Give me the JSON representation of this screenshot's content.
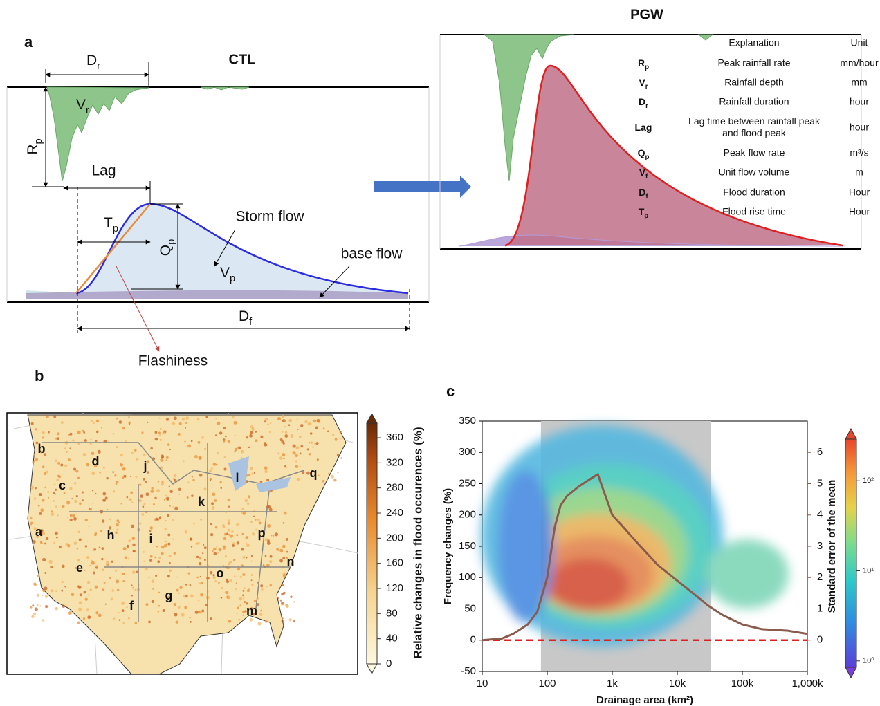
{
  "panel_a": {
    "label": "a",
    "title": "CTL",
    "symbols": {
      "Dr": {
        "base": "D",
        "sub": "r"
      },
      "Vr": {
        "base": "V",
        "sub": "r"
      },
      "Rp": {
        "base": "R",
        "sub": "p"
      },
      "Tp": {
        "base": "T",
        "sub": "p"
      },
      "Qp": {
        "base": "Q",
        "sub": "p"
      },
      "Vp": {
        "base": "V",
        "sub": "p"
      },
      "Df": {
        "base": "D",
        "sub": "f"
      }
    },
    "lag": "Lag",
    "storm_flow": "Storm flow",
    "base_flow": "base flow",
    "flashiness": "Flashiness"
  },
  "pgw": {
    "title": "PGW",
    "table": {
      "header": [
        "Explanation",
        "Unit"
      ],
      "rows": [
        [
          {
            "base": "R",
            "sub": "p"
          },
          [
            "Peak rainfall rate"
          ],
          "mm/hour"
        ],
        [
          {
            "base": "V",
            "sub": "r"
          },
          [
            "Rainfall depth"
          ],
          "mm"
        ],
        [
          {
            "base": "D",
            "sub": "r"
          },
          [
            "Rainfall duration"
          ],
          "hour"
        ],
        [
          {
            "base": "Lag",
            "sub": ""
          },
          [
            "Lag time between rainfall peak",
            "and flood peak"
          ],
          "hour"
        ],
        [
          {
            "base": "Q",
            "sub": "p"
          },
          [
            "Peak flow rate"
          ],
          "m³/s"
        ],
        [
          {
            "base": "V",
            "sub": "f"
          },
          [
            "Unit flow volume"
          ],
          "m"
        ],
        [
          {
            "base": "D",
            "sub": "f"
          },
          [
            "Flood duration"
          ],
          "Hour"
        ],
        [
          {
            "base": "T",
            "sub": "p"
          },
          [
            "Flood rise time"
          ],
          "Hour"
        ]
      ]
    }
  },
  "panel_b": {
    "label": "b",
    "region_labels": [
      "a",
      "b",
      "c",
      "d",
      "e",
      "f",
      "g",
      "h",
      "i",
      "j",
      "k",
      "l",
      "m",
      "n",
      "o",
      "p",
      "q"
    ],
    "colorbar": {
      "label": "Relative changes in flood occurences (%)",
      "lim": [
        0,
        360
      ],
      "ticks": [
        0,
        40,
        80,
        120,
        160,
        200,
        240,
        280,
        320,
        360
      ]
    }
  },
  "chart_data": {
    "type": "line",
    "panel_label": "c",
    "x_label": "Drainage area (km²)",
    "y_label": "Frequency changes (%)",
    "y2_label": "Standard error of the mean",
    "x_log": true,
    "xlim": [
      10,
      1000000
    ],
    "xticks": [
      10,
      100,
      {
        "value": 1000,
        "label": "1k"
      },
      {
        "value": 10000,
        "label": "10k"
      },
      {
        "value": 100000,
        "label": "100k"
      },
      {
        "value": 1000000,
        "label": "1,000k"
      }
    ],
    "ylim": [
      -50,
      350
    ],
    "yticks": [
      -50,
      0,
      50,
      100,
      150,
      200,
      250,
      300,
      350
    ],
    "y2lim": [
      -1,
      7
    ],
    "y2ticks": [
      0,
      1,
      2,
      3,
      4,
      5,
      6
    ],
    "shaded_range": [
      80,
      33000
    ],
    "reference_line": 0,
    "x": [
      10,
      20,
      30,
      50,
      70,
      100,
      130,
      160,
      200,
      300,
      500,
      600,
      700,
      1000,
      1500,
      2000,
      3000,
      5000,
      10000,
      20000,
      30000,
      50000,
      100000,
      200000,
      500000,
      1000000
    ],
    "series": [
      {
        "color": "#8a5a4c",
        "axis": "y2",
        "values": [
          0,
          0.05,
          0.2,
          0.5,
          0.9,
          2.0,
          3.6,
          4.3,
          4.6,
          4.9,
          5.2,
          5.3,
          4.9,
          4.0,
          3.6,
          3.3,
          2.9,
          2.4,
          1.9,
          1.4,
          1.1,
          0.8,
          0.5,
          0.35,
          0.3,
          0.2
        ]
      }
    ],
    "colorbar": {
      "log": true,
      "lim": [
        0.85,
        290
      ],
      "ticks": [
        {
          "value": 1,
          "label": "10⁰"
        },
        {
          "value": 10,
          "label": "10¹"
        },
        {
          "value": 100,
          "label": "10²"
        }
      ]
    }
  }
}
